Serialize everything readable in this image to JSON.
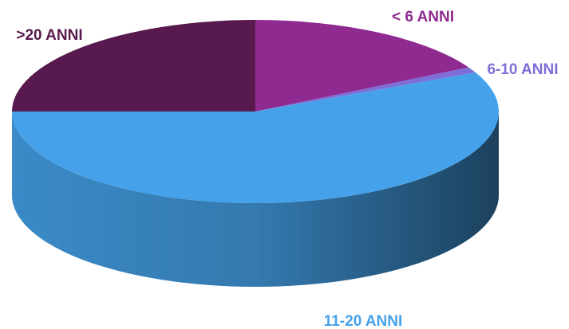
{
  "chart_data": {
    "type": "pie",
    "categories": [
      "< 6 ANNI",
      "6-10 ANNI",
      "11-20 ANNI",
      ">20 ANNI"
    ],
    "values": [
      17,
      1,
      57,
      25
    ],
    "colors": [
      "#8e2a90",
      "#7e6fd8",
      "#45a2ea",
      "#581a4e"
    ]
  }
}
